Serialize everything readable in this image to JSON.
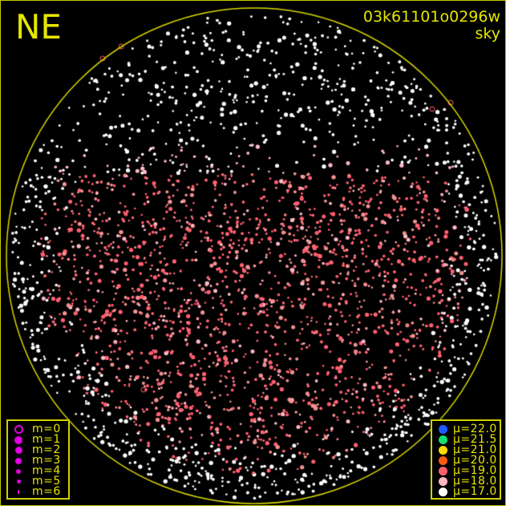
{
  "header": {
    "direction": "NE",
    "frame_id": "03k61101o0296w",
    "mode": "sky"
  },
  "colors": {
    "frame": "#e6e600",
    "horizon": "#d8d800",
    "magnitude_symbol": "#e000e0"
  },
  "magnitude_legend": [
    {
      "label": "m=0",
      "style": "ring"
    },
    {
      "label": "m=1",
      "style": "filled"
    },
    {
      "label": "m=2",
      "style": "filled"
    },
    {
      "label": "m=3",
      "style": "filled"
    },
    {
      "label": "m=4",
      "style": "filled"
    },
    {
      "label": "m=5",
      "style": "filled"
    },
    {
      "label": "m=6",
      "style": "filled"
    }
  ],
  "brightness_legend": [
    {
      "label": "μ=22.0",
      "color": "#1e5cff"
    },
    {
      "label": "μ=21.5",
      "color": "#10e070"
    },
    {
      "label": "μ=21.0",
      "color": "#ffd800"
    },
    {
      "label": "μ=20.0",
      "color": "#ff5a10"
    },
    {
      "label": "μ=19.0",
      "color": "#ff6070"
    },
    {
      "label": "μ=18.0",
      "color": "#ffb8c4"
    },
    {
      "label": "μ=17.0",
      "color": "#ffffff"
    }
  ]
}
